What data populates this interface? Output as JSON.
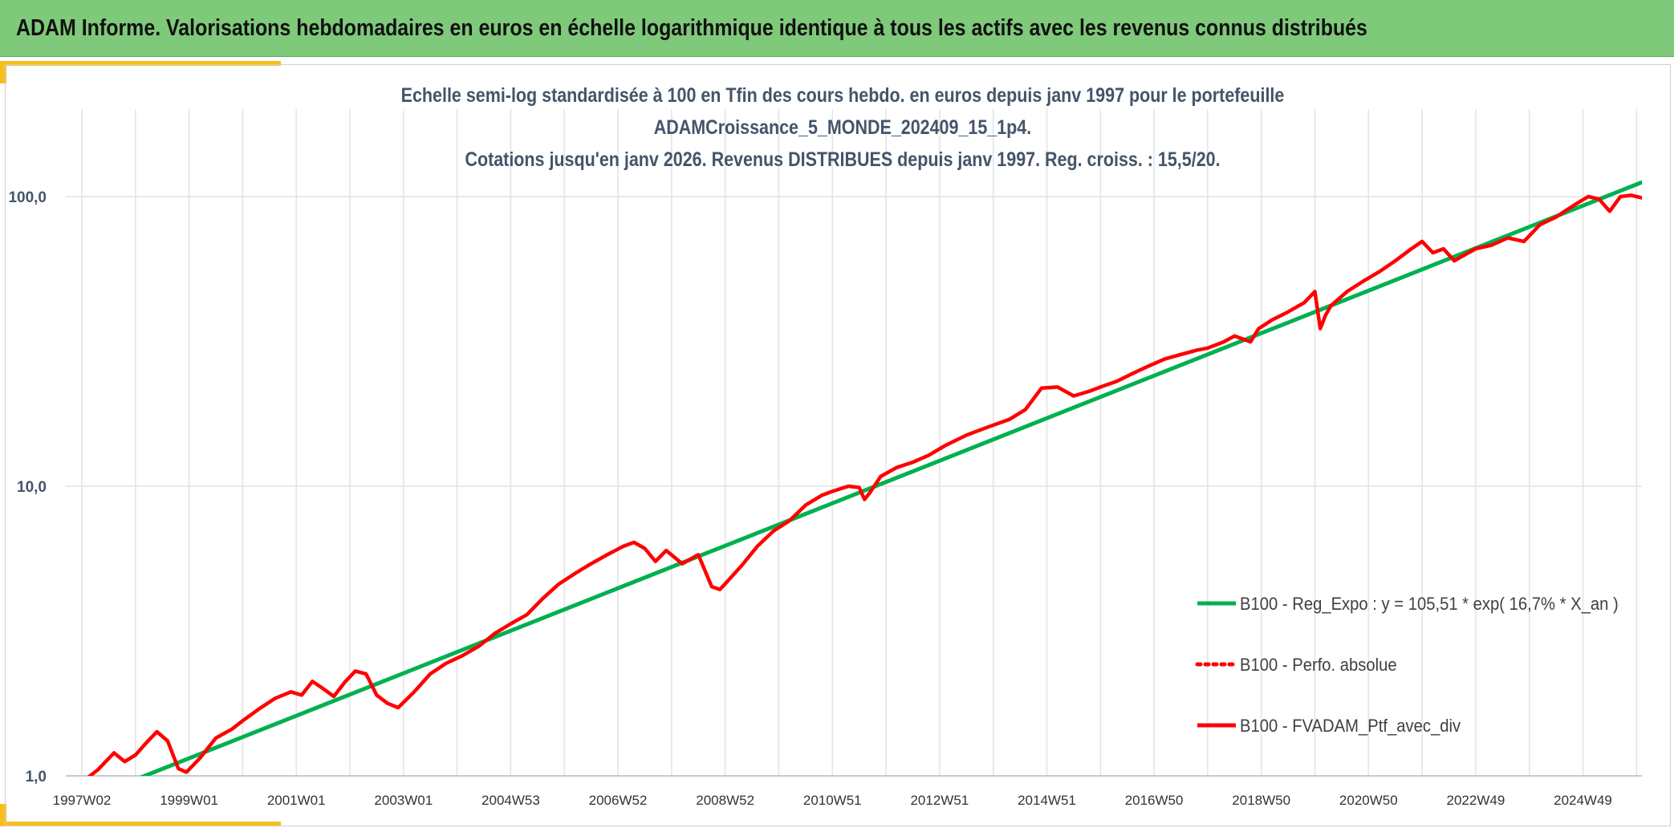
{
  "header": {
    "title": "ADAM Informe. Valorisations hebdomadaires en euros en échelle logarithmique identique à tous les actifs avec les revenus connus distribués"
  },
  "colors": {
    "header_bg": "#7fc97a",
    "accent": "#f6bf1c",
    "regression": "#00b050",
    "series": "#ff0000",
    "grid": "#e3e3e3"
  },
  "chart_data": {
    "type": "line",
    "title_lines": [
      "Echelle semi-log standardisée à 100 en Tfin des cours hebdo. en euros depuis janv 1997 pour le portefeuille",
      "ADAMCroissance_5_MONDE_202409_15_1p4.",
      "Cotations jusqu'en janv 2026. Revenus DISTRIBUES depuis janv 1997. Reg. croiss. : 15,5/20."
    ],
    "xlabel": "",
    "ylabel": "",
    "y_scale": "log",
    "ylim": [
      1,
      200
    ],
    "xlim": [
      1997.0,
      2026.1
    ],
    "y_ticks": [
      {
        "value": 1,
        "label": "1,0"
      },
      {
        "value": 10,
        "label": "10,0"
      },
      {
        "value": 100,
        "label": "100,0"
      }
    ],
    "x_ticks": [
      {
        "value": 1997.0,
        "label": "1997W02"
      },
      {
        "value": 1999.0,
        "label": "1999W01"
      },
      {
        "value": 2001.0,
        "label": "2001W01"
      },
      {
        "value": 2003.0,
        "label": "2003W01"
      },
      {
        "value": 2005.0,
        "label": "2004W53"
      },
      {
        "value": 2007.0,
        "label": "2006W52"
      },
      {
        "value": 2009.0,
        "label": "2008W52"
      },
      {
        "value": 2011.0,
        "label": "2010W51"
      },
      {
        "value": 2013.0,
        "label": "2012W51"
      },
      {
        "value": 2015.0,
        "label": "2014W51"
      },
      {
        "value": 2017.0,
        "label": "2016W50"
      },
      {
        "value": 2019.0,
        "label": "2018W50"
      },
      {
        "value": 2021.0,
        "label": "2020W50"
      },
      {
        "value": 2023.0,
        "label": "2022W49"
      },
      {
        "value": 2025.0,
        "label": "2024W49"
      }
    ],
    "grid": true,
    "legend_position": "bottom-right",
    "series": [
      {
        "name": "B100 - Reg_Expo : y = 105,51 * exp( 16,7% *  X_an )",
        "style": "solid",
        "color": "#00b050",
        "x": [
          1997.0,
          2026.1
        ],
        "y": [
          0.82,
          112
        ]
      },
      {
        "name": "B100 - Perfo. absolue",
        "style": "dotted",
        "color": "#ff0000",
        "x": [],
        "y": []
      },
      {
        "name": "B100 - FVADAM_Ptf_avec_div",
        "style": "solid",
        "color": "#ff0000",
        "x": [
          1997.0,
          1997.3,
          1997.6,
          1997.8,
          1998.0,
          1998.2,
          1998.4,
          1998.6,
          1998.8,
          1998.95,
          1999.2,
          1999.5,
          1999.8,
          2000.0,
          2000.3,
          2000.6,
          2000.9,
          2001.1,
          2001.3,
          2001.5,
          2001.7,
          2001.9,
          2002.1,
          2002.3,
          2002.5,
          2002.7,
          2002.9,
          2003.2,
          2003.5,
          2003.8,
          2004.1,
          2004.4,
          2004.7,
          2005.0,
          2005.3,
          2005.6,
          2005.9,
          2006.2,
          2006.5,
          2006.8,
          2007.1,
          2007.3,
          2007.5,
          2007.7,
          2007.9,
          2008.2,
          2008.5,
          2008.75,
          2008.9,
          2009.0,
          2009.3,
          2009.6,
          2009.9,
          2010.2,
          2010.5,
          2010.8,
          2011.0,
          2011.3,
          2011.5,
          2011.6,
          2011.7,
          2011.9,
          2012.2,
          2012.5,
          2012.8,
          2013.1,
          2013.5,
          2013.9,
          2014.3,
          2014.6,
          2014.9,
          2015.2,
          2015.5,
          2015.8,
          2016.0,
          2016.3,
          2016.6,
          2016.9,
          2017.2,
          2017.5,
          2017.8,
          2018.0,
          2018.3,
          2018.5,
          2018.8,
          2018.95,
          2019.2,
          2019.5,
          2019.8,
          2020.0,
          2020.1,
          2020.2,
          2020.3,
          2020.6,
          2020.9,
          2021.2,
          2021.5,
          2021.8,
          2022.0,
          2022.2,
          2022.4,
          2022.6,
          2022.8,
          2023.0,
          2023.3,
          2023.6,
          2023.9,
          2024.2,
          2024.5,
          2024.7,
          2024.9,
          2025.1,
          2025.3,
          2025.5,
          2025.7,
          2025.9,
          2026.1
        ],
        "y": [
          0.95,
          1.05,
          1.2,
          1.12,
          1.18,
          1.3,
          1.42,
          1.32,
          1.06,
          1.03,
          1.15,
          1.35,
          1.45,
          1.55,
          1.7,
          1.85,
          1.95,
          1.9,
          2.12,
          2.0,
          1.88,
          2.1,
          2.3,
          2.25,
          1.9,
          1.78,
          1.72,
          1.95,
          2.25,
          2.45,
          2.6,
          2.8,
          3.1,
          3.35,
          3.6,
          4.1,
          4.6,
          5.0,
          5.4,
          5.8,
          6.2,
          6.4,
          6.1,
          5.5,
          6.0,
          5.4,
          5.8,
          4.5,
          4.4,
          4.6,
          5.3,
          6.2,
          7.0,
          7.6,
          8.6,
          9.3,
          9.6,
          10.0,
          9.9,
          9.0,
          9.5,
          10.8,
          11.6,
          12.1,
          12.8,
          13.8,
          15.0,
          16.0,
          17.0,
          18.4,
          21.8,
          22.0,
          20.5,
          21.3,
          22.0,
          23.0,
          24.5,
          26.0,
          27.5,
          28.5,
          29.5,
          30.0,
          31.5,
          33.0,
          31.5,
          35.0,
          37.5,
          40.0,
          43.0,
          47.0,
          35.0,
          39.0,
          42.0,
          47.0,
          51.0,
          55.0,
          60.0,
          66.0,
          70.0,
          64.0,
          66.0,
          60.0,
          63.0,
          66.0,
          68.0,
          72.0,
          70.0,
          80.0,
          85.0,
          90.0,
          95.0,
          100.0,
          98.0,
          89.0,
          100.0,
          101.0,
          99.0
        ]
      }
    ]
  }
}
